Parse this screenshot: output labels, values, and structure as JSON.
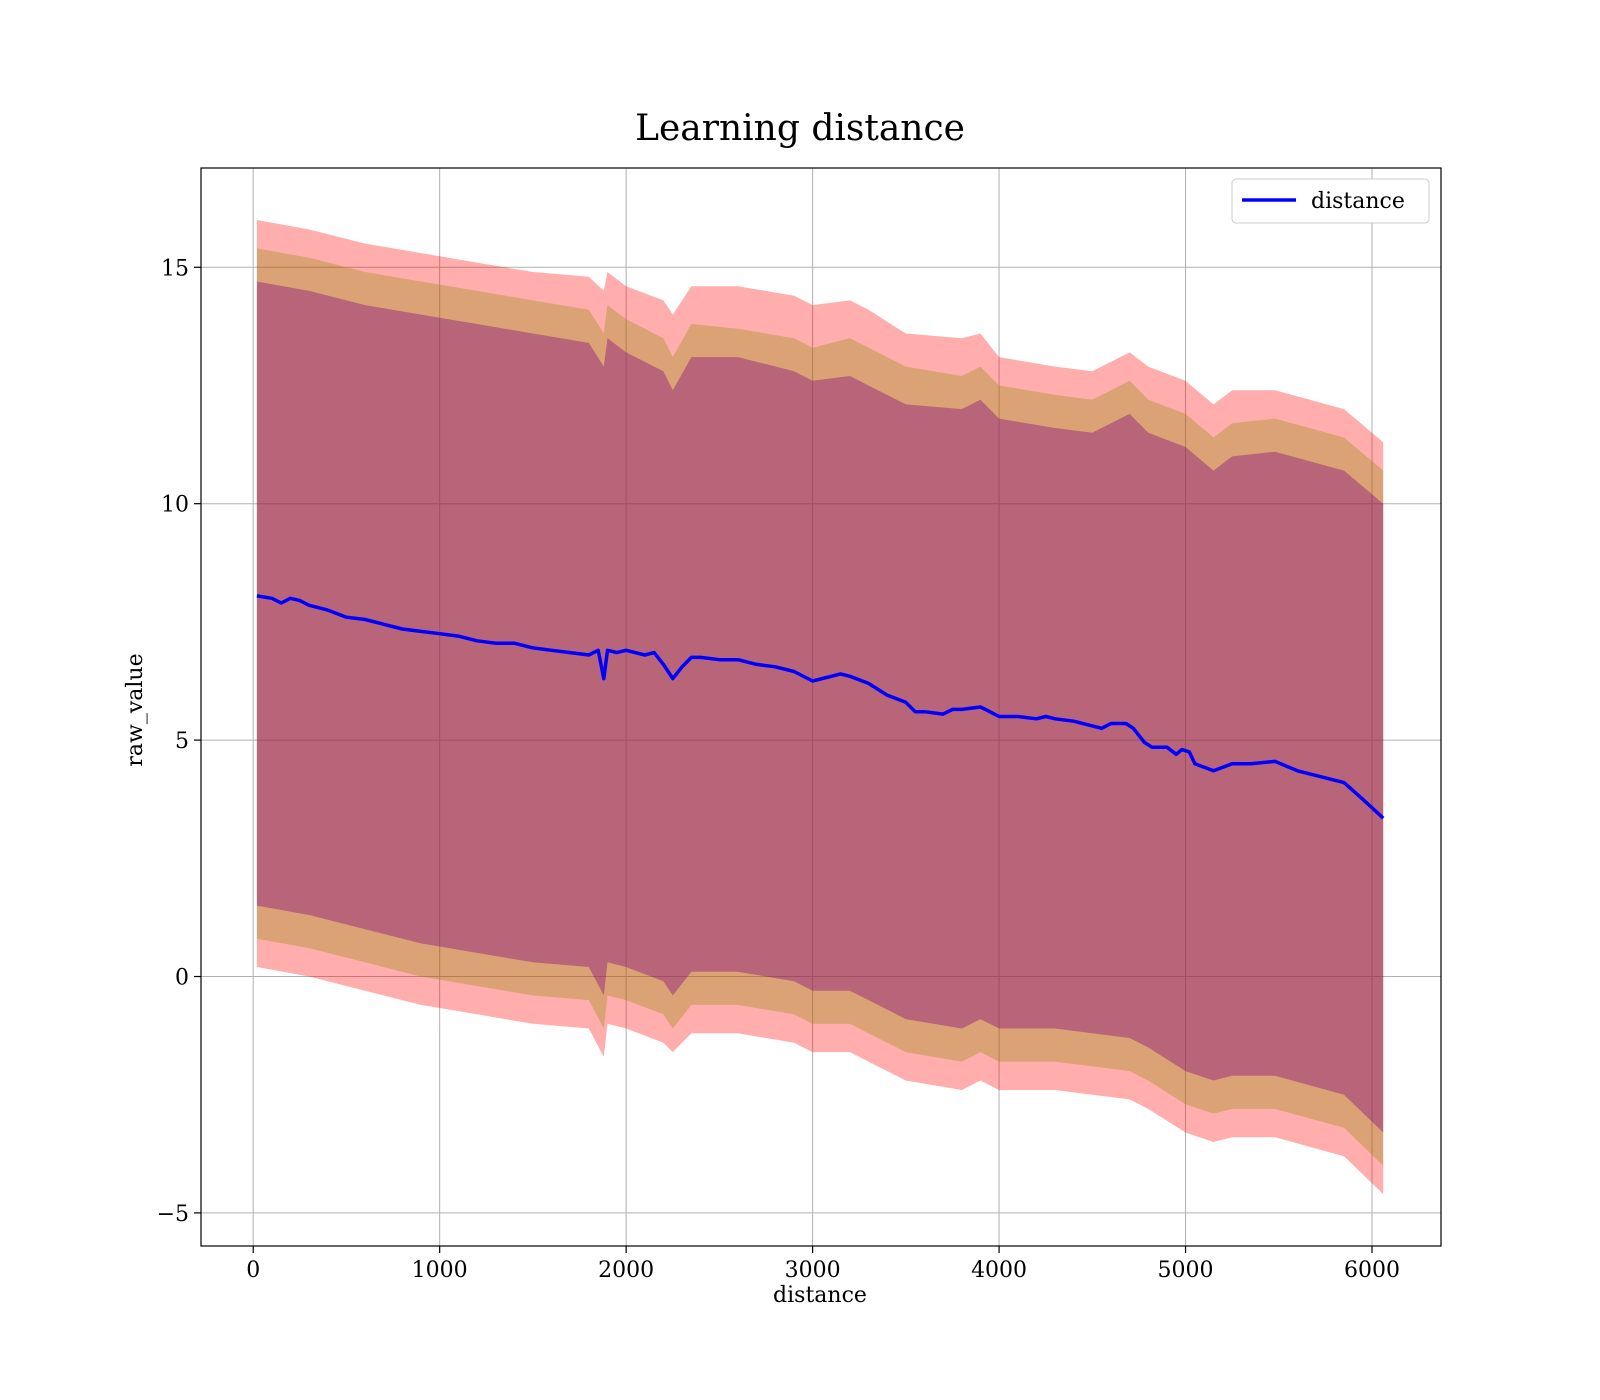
{
  "chart_data": {
    "type": "line",
    "title": "Learning distance",
    "xlabel": "distance",
    "ylabel": "raw_value",
    "xlim": [
      -280,
      6370
    ],
    "ylim": [
      -5.7,
      17.1
    ],
    "xticks": [
      0,
      1000,
      2000,
      3000,
      4000,
      5000,
      6000
    ],
    "yticks": [
      -5,
      0,
      5,
      10,
      15
    ],
    "ytick_labels": [
      "−5",
      "0",
      "5",
      "10",
      "15"
    ],
    "grid": true,
    "legend": {
      "placement": "top-right",
      "entries": [
        "distance"
      ]
    },
    "colors": {
      "line": "#0000ff",
      "band_outer": "#ff0000",
      "band_middle": "#8b8b00",
      "band_inner": "#800080",
      "grid": "#b0b0b0"
    },
    "series": [
      {
        "name": "distance",
        "x": [
          20,
          100,
          150,
          200,
          250,
          300,
          400,
          500,
          600,
          700,
          800,
          900,
          1000,
          1100,
          1200,
          1300,
          1400,
          1500,
          1600,
          1700,
          1800,
          1850,
          1880,
          1900,
          1950,
          2000,
          2100,
          2150,
          2200,
          2250,
          2300,
          2350,
          2400,
          2500,
          2600,
          2700,
          2800,
          2900,
          3000,
          3100,
          3150,
          3200,
          3300,
          3400,
          3500,
          3550,
          3600,
          3700,
          3750,
          3800,
          3900,
          3950,
          4000,
          4100,
          4200,
          4250,
          4300,
          4400,
          4500,
          4550,
          4600,
          4680,
          4720,
          4780,
          4820,
          4900,
          4950,
          4980,
          5020,
          5050,
          5150,
          5250,
          5350,
          5480,
          5600,
          5850,
          5950,
          6060
        ],
        "values": [
          8.05,
          8.0,
          7.9,
          8.0,
          7.95,
          7.85,
          7.75,
          7.6,
          7.55,
          7.45,
          7.35,
          7.3,
          7.25,
          7.2,
          7.1,
          7.05,
          7.05,
          6.95,
          6.9,
          6.85,
          6.8,
          6.9,
          6.3,
          6.9,
          6.85,
          6.9,
          6.8,
          6.85,
          6.6,
          6.3,
          6.55,
          6.75,
          6.75,
          6.7,
          6.7,
          6.6,
          6.55,
          6.45,
          6.25,
          6.35,
          6.4,
          6.35,
          6.2,
          5.95,
          5.8,
          5.6,
          5.6,
          5.55,
          5.65,
          5.65,
          5.7,
          5.6,
          5.5,
          5.5,
          5.45,
          5.5,
          5.45,
          5.4,
          5.3,
          5.25,
          5.35,
          5.35,
          5.25,
          4.95,
          4.85,
          4.85,
          4.7,
          4.8,
          4.75,
          4.5,
          4.35,
          4.5,
          4.5,
          4.55,
          4.35,
          4.1,
          3.75,
          3.35
        ]
      }
    ],
    "bands": [
      {
        "layer": "outer",
        "x": [
          20,
          300,
          600,
          900,
          1200,
          1500,
          1800,
          1880,
          1900,
          2000,
          2200,
          2250,
          2350,
          2600,
          2900,
          3000,
          3200,
          3300,
          3500,
          3800,
          3900,
          4000,
          4300,
          4500,
          4700,
          4800,
          5000,
          5150,
          5250,
          5480,
          5850,
          6060
        ],
        "upper": [
          16.0,
          15.8,
          15.5,
          15.3,
          15.1,
          14.9,
          14.8,
          14.5,
          14.9,
          14.6,
          14.3,
          14.0,
          14.6,
          14.6,
          14.4,
          14.2,
          14.3,
          14.1,
          13.6,
          13.5,
          13.6,
          13.1,
          12.9,
          12.8,
          13.2,
          12.9,
          12.6,
          12.1,
          12.4,
          12.4,
          12.0,
          11.3
        ],
        "lower": [
          0.2,
          0.0,
          -0.3,
          -0.6,
          -0.8,
          -1.0,
          -1.1,
          -1.7,
          -1.0,
          -1.1,
          -1.4,
          -1.6,
          -1.2,
          -1.2,
          -1.4,
          -1.6,
          -1.6,
          -1.8,
          -2.2,
          -2.4,
          -2.2,
          -2.4,
          -2.4,
          -2.5,
          -2.6,
          -2.8,
          -3.3,
          -3.5,
          -3.4,
          -3.4,
          -3.8,
          -4.6
        ]
      },
      {
        "layer": "middle",
        "x": [
          20,
          300,
          600,
          900,
          1200,
          1500,
          1800,
          1880,
          1900,
          2000,
          2200,
          2250,
          2350,
          2600,
          2900,
          3000,
          3200,
          3300,
          3500,
          3800,
          3900,
          4000,
          4300,
          4500,
          4700,
          4800,
          5000,
          5150,
          5250,
          5480,
          5850,
          6060
        ],
        "upper": [
          15.4,
          15.2,
          14.9,
          14.7,
          14.5,
          14.3,
          14.1,
          13.6,
          14.2,
          13.9,
          13.5,
          13.1,
          13.8,
          13.7,
          13.5,
          13.3,
          13.5,
          13.3,
          12.9,
          12.7,
          12.9,
          12.5,
          12.3,
          12.2,
          12.6,
          12.2,
          11.9,
          11.4,
          11.7,
          11.8,
          11.4,
          10.7
        ],
        "lower": [
          0.8,
          0.6,
          0.3,
          0.0,
          -0.2,
          -0.4,
          -0.5,
          -1.1,
          -0.4,
          -0.5,
          -0.8,
          -1.1,
          -0.6,
          -0.6,
          -0.8,
          -1.0,
          -1.0,
          -1.2,
          -1.6,
          -1.8,
          -1.6,
          -1.8,
          -1.8,
          -1.9,
          -2.0,
          -2.2,
          -2.7,
          -2.9,
          -2.8,
          -2.8,
          -3.2,
          -4.0
        ]
      },
      {
        "layer": "inner",
        "x": [
          20,
          300,
          600,
          900,
          1200,
          1500,
          1800,
          1880,
          1900,
          2000,
          2200,
          2250,
          2350,
          2600,
          2900,
          3000,
          3200,
          3300,
          3500,
          3800,
          3900,
          4000,
          4300,
          4500,
          4700,
          4800,
          5000,
          5150,
          5250,
          5480,
          5850,
          6060
        ],
        "upper": [
          14.7,
          14.5,
          14.2,
          14.0,
          13.8,
          13.6,
          13.4,
          12.9,
          13.5,
          13.2,
          12.8,
          12.4,
          13.1,
          13.1,
          12.8,
          12.6,
          12.7,
          12.5,
          12.1,
          12.0,
          12.2,
          11.8,
          11.6,
          11.5,
          11.9,
          11.5,
          11.2,
          10.7,
          11.0,
          11.1,
          10.7,
          10.0
        ],
        "lower": [
          1.5,
          1.3,
          1.0,
          0.7,
          0.5,
          0.3,
          0.2,
          -0.4,
          0.3,
          0.2,
          -0.1,
          -0.4,
          0.1,
          0.1,
          -0.1,
          -0.3,
          -0.3,
          -0.5,
          -0.9,
          -1.1,
          -0.9,
          -1.1,
          -1.1,
          -1.2,
          -1.3,
          -1.5,
          -2.0,
          -2.2,
          -2.1,
          -2.1,
          -2.5,
          -3.3
        ]
      }
    ]
  }
}
